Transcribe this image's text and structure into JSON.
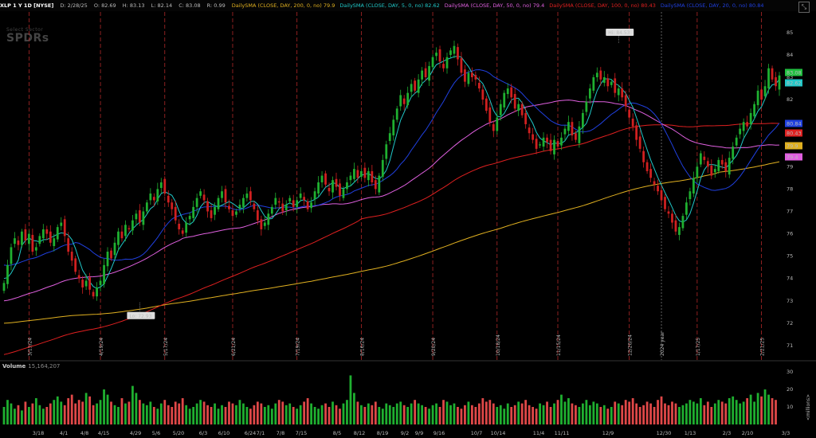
{
  "header": {
    "symbol": "XLP 1 Y 1D [NYSE]",
    "date": "D: 2/28/25",
    "open": "O: 82.69",
    "high": "H: 83.13",
    "low": "L: 82.14",
    "close": "C: 83.08",
    "range": "R: 0.99",
    "studies": [
      {
        "label": "DailySMA (CLOSE, DAY, 200, 0, no)",
        "value": "79.9",
        "color": "#e0b020"
      },
      {
        "label": "DailySMA (CLOSE, DAY, 5, 0, no)",
        "value": "82.62",
        "color": "#20c8c8"
      },
      {
        "label": "DailySMA (CLOSE, DAY, 50, 0, no)",
        "value": "79.4",
        "color": "#e060e0"
      },
      {
        "label": "DailySMA (CLOSE, DAY, 100, 0, no)",
        "value": "80.43",
        "color": "#e02020"
      },
      {
        "label": "DailySMA (CLOSE, DAY, 20, 0, no)",
        "value": "80.84",
        "color": "#2040e0"
      }
    ]
  },
  "watermark": {
    "line1": "Select Sector",
    "line2": "SPDRs"
  },
  "chart_data": {
    "type": "candlestick",
    "y_ticks": [
      71,
      72,
      73,
      74,
      75,
      76,
      77,
      78,
      79,
      80,
      81,
      82,
      83,
      84,
      85
    ],
    "ylim": [
      70.5,
      85.6
    ],
    "price_labels": [
      {
        "value": 83.08,
        "text": "83.08",
        "color": "#20c040"
      },
      {
        "value": 82.62,
        "text": "82.62",
        "color": "#20c8c8"
      },
      {
        "value": 80.84,
        "text": "80.84",
        "color": "#2040e0"
      },
      {
        "value": 80.43,
        "text": "80.43",
        "color": "#e02020"
      },
      {
        "value": 79.9,
        "text": "79.9",
        "color": "#e0b020"
      },
      {
        "value": 79.4,
        "text": "79.4",
        "color": "#e060e0"
      }
    ],
    "hi": {
      "text": "Hi: 84.53",
      "value": 84.53,
      "index": 172
    },
    "lo": {
      "text": "Lo: 72.93",
      "value": 72.93,
      "index": 38
    },
    "vertical_markers": [
      "3/15/24",
      "4/19/24",
      "5/17/24",
      "6/21/24",
      "7/19/24",
      "8/16/24",
      "9/20/24",
      "10/18/24",
      "11/15/24",
      "12/20/24",
      "1/17/25",
      "2/21/25"
    ],
    "year_marker": "2024 year",
    "x_ticks": [
      "3/18",
      "4/1",
      "4/8",
      "4/15",
      "4/29",
      "5/6",
      "5/20",
      "6/3",
      "6/10",
      "6/24",
      "7/1",
      "7/8",
      "7/15",
      "8/5",
      "8/12",
      "8/19",
      "9/2",
      "9/9",
      "9/16",
      "10/7",
      "10/14",
      "11/4",
      "11/11",
      "12/9",
      "12/30",
      "1/13",
      "2/3",
      "2/10",
      "3/3"
    ],
    "closes": [
      73.8,
      74.6,
      75.4,
      75.8,
      75.5,
      76.1,
      75.7,
      76.0,
      75.2,
      75.4,
      75.9,
      76.2,
      76.0,
      75.6,
      75.8,
      76.3,
      76.5,
      75.9,
      75.2,
      74.8,
      74.3,
      74.0,
      73.6,
      73.9,
      73.5,
      73.2,
      73.6,
      73.9,
      74.6,
      75.2,
      74.9,
      75.6,
      76.1,
      75.8,
      76.4,
      76.2,
      76.6,
      76.9,
      76.5,
      77.0,
      77.4,
      77.8,
      77.5,
      78.0,
      78.3,
      77.8,
      77.4,
      77.1,
      76.6,
      76.2,
      76.0,
      76.5,
      76.8,
      77.2,
      77.6,
      77.9,
      77.5,
      77.0,
      76.7,
      77.2,
      77.6,
      77.9,
      77.4,
      77.1,
      76.8,
      77.0,
      77.3,
      77.6,
      77.8,
      77.5,
      77.1,
      76.6,
      76.2,
      76.5,
      76.9,
      77.2,
      77.6,
      77.4,
      77.0,
      77.3,
      77.6,
      77.2,
      77.5,
      77.8,
      77.5,
      77.1,
      77.4,
      77.9,
      78.3,
      78.6,
      78.2,
      77.9,
      78.4,
      78.1,
      77.7,
      78.0,
      78.3,
      78.6,
      78.9,
      78.5,
      78.8,
      78.5,
      78.8,
      78.3,
      78.0,
      78.6,
      79.3,
      80.0,
      80.5,
      81.1,
      81.6,
      82.2,
      81.8,
      82.3,
      82.7,
      82.4,
      82.9,
      83.3,
      83.0,
      83.5,
      83.9,
      84.1,
      83.7,
      83.4,
      83.9,
      84.2,
      84.4,
      83.8,
      83.2,
      82.8,
      83.2,
      83.0,
      82.9,
      82.5,
      82.0,
      81.5,
      81.0,
      80.6,
      81.2,
      81.8,
      82.3,
      82.5,
      82.1,
      81.6,
      81.8,
      81.3,
      80.9,
      80.5,
      80.2,
      79.8,
      80.0,
      80.3,
      80.1,
      79.7,
      80.2,
      79.9,
      80.3,
      80.7,
      81.0,
      80.4,
      80.2,
      80.8,
      81.4,
      81.9,
      82.5,
      83.0,
      83.2,
      82.9,
      83.0,
      82.6,
      82.8,
      82.3,
      82.5,
      82.1,
      81.7,
      81.2,
      80.8,
      80.2,
      79.8,
      79.2,
      78.8,
      78.5,
      78.2,
      77.9,
      77.5,
      77.1,
      76.9,
      76.5,
      76.1,
      76.3,
      76.8,
      77.4,
      77.9,
      78.5,
      79.0,
      79.6,
      79.3,
      79.0,
      78.6,
      78.9,
      79.3,
      79.1,
      78.8,
      79.4,
      79.9,
      80.3,
      80.7,
      81.0,
      80.8,
      81.4,
      81.8,
      82.4,
      82.0,
      82.6,
      83.4,
      82.9,
      82.6,
      83.08
    ],
    "vol_ylim": [
      0,
      30
    ],
    "vol_ticks": [
      10,
      20,
      30
    ],
    "vol_unit": "<millions>",
    "volumes": [
      10,
      14,
      12,
      9,
      11,
      8,
      13,
      10,
      12,
      15,
      11,
      9,
      10,
      12,
      14,
      16,
      13,
      11,
      15,
      17,
      12,
      14,
      13,
      18,
      16,
      11,
      12,
      14,
      20,
      17,
      13,
      11,
      10,
      15,
      12,
      13,
      22,
      18,
      14,
      12,
      11,
      13,
      10,
      9,
      12,
      14,
      11,
      10,
      13,
      12,
      15,
      11,
      9,
      10,
      12,
      14,
      13,
      11,
      10,
      12,
      9,
      11,
      10,
      13,
      12,
      11,
      14,
      12,
      10,
      9,
      11,
      13,
      12,
      10,
      11,
      9,
      12,
      14,
      13,
      11,
      12,
      10,
      9,
      11,
      13,
      15,
      12,
      10,
      9,
      11,
      12,
      10,
      13,
      11,
      9,
      12,
      14,
      28,
      18,
      13,
      11,
      10,
      12,
      11,
      13,
      10,
      9,
      12,
      11,
      10,
      12,
      13,
      11,
      10,
      12,
      14,
      12,
      11,
      10,
      9,
      11,
      12,
      10,
      14,
      13,
      11,
      12,
      10,
      9,
      11,
      13,
      11,
      10,
      12,
      15,
      13,
      14,
      12,
      10,
      11,
      9,
      12,
      10,
      11,
      13,
      12,
      14,
      11,
      10,
      9,
      12,
      11,
      13,
      10,
      12,
      14,
      17,
      13,
      15,
      12,
      11,
      10,
      12,
      14,
      11,
      13,
      12,
      10,
      11,
      9,
      10,
      13,
      12,
      11,
      14,
      13,
      15,
      12,
      10,
      11,
      13,
      12,
      10,
      14,
      16,
      12,
      11,
      13,
      12,
      10,
      11,
      12,
      14,
      13,
      12,
      15,
      11,
      13,
      10,
      12,
      14,
      13,
      12,
      15,
      16,
      14,
      12,
      13,
      15,
      17,
      13,
      18,
      16,
      20,
      17,
      15,
      14
    ]
  },
  "volume": {
    "label": "Volume",
    "value": "15,164,207"
  }
}
